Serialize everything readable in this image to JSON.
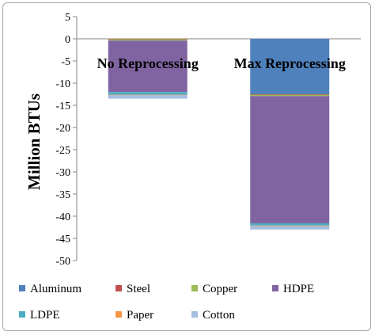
{
  "chart_data": {
    "type": "bar",
    "stacked": true,
    "categories": [
      "No Reprocessing",
      "Max Reprocessing"
    ],
    "ylabel": "Million BTUs",
    "ylim": [
      -50,
      5
    ],
    "yticks": [
      5,
      0,
      -5,
      -10,
      -15,
      -20,
      -25,
      -30,
      -35,
      -40,
      -45,
      -50
    ],
    "grid": false,
    "legend_position": "bottom",
    "series": [
      {
        "name": "Aluminum",
        "color": "#4f81bd",
        "values": [
          0,
          -12.5
        ]
      },
      {
        "name": "Steel",
        "color": "#c0504d",
        "values": [
          -0.1,
          -0.1
        ]
      },
      {
        "name": "Copper",
        "color": "#9bbb59",
        "values": [
          -0.3,
          -0.3
        ]
      },
      {
        "name": "HDPE",
        "color": "#8064a2",
        "values": [
          -11.6,
          -28.7
        ]
      },
      {
        "name": "LDPE",
        "color": "#4bacc6",
        "values": [
          -0.6,
          -0.5
        ]
      },
      {
        "name": "Paper",
        "color": "#f79646",
        "values": [
          -0.1,
          -0.1
        ]
      },
      {
        "name": "Cotton",
        "color": "#a5bfe0",
        "values": [
          -0.8,
          -0.8
        ]
      }
    ]
  }
}
